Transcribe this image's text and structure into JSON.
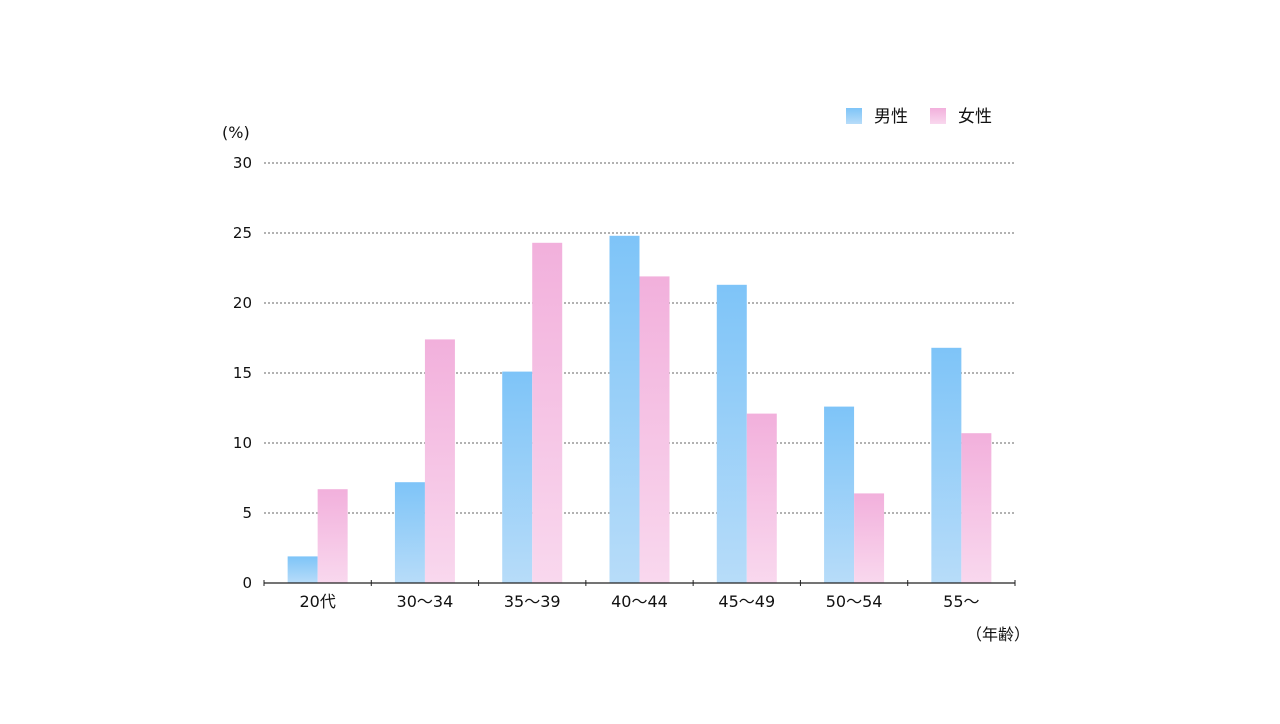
{
  "chart_data": {
    "type": "bar",
    "y_unit_label": "(%)",
    "x_unit_label": "（年齢）",
    "categories": [
      "20代",
      "30〜34",
      "35〜39",
      "40〜44",
      "45〜49",
      "50〜54",
      "55〜"
    ],
    "series": [
      {
        "name": "男性",
        "values": [
          1.9,
          7.2,
          15.1,
          24.8,
          21.3,
          12.6,
          16.8
        ],
        "color_top": "#7ec4f8",
        "color_bottom": "#b7dcf9"
      },
      {
        "name": "女性",
        "values": [
          6.7,
          17.4,
          24.3,
          21.9,
          12.1,
          6.4,
          10.7
        ],
        "color_top": "#f2b0dc",
        "color_bottom": "#f9d8ee"
      }
    ],
    "ylim": [
      0,
      30
    ],
    "yticks": [
      0,
      5,
      10,
      15,
      20,
      25,
      30
    ],
    "grid": true,
    "legend_position": "top-right"
  }
}
